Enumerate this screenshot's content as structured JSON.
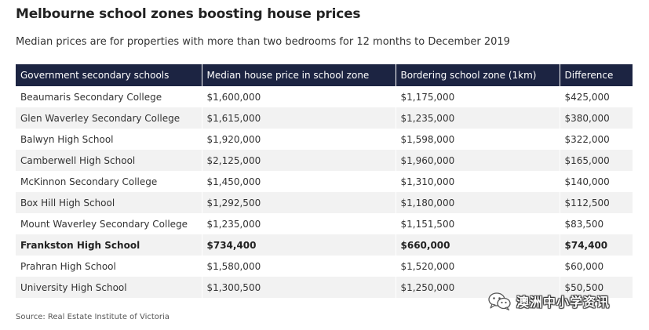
{
  "title": "Melbourne school zones boosting house prices",
  "subtitle": "Median prices are for properties with more than two bedrooms for 12 months to December 2019",
  "table": {
    "headers": [
      "Government secondary schools",
      "Median house price in school zone",
      "Bordering school zone (1km)",
      "Difference"
    ],
    "rows": [
      [
        "Beaumaris Secondary College",
        "$1,600,000",
        "$1,175,000",
        "$425,000"
      ],
      [
        "Glen Waverley Secondary College",
        "$1,615,000",
        "$1,235,000",
        "$380,000"
      ],
      [
        "Balwyn High School",
        "$1,920,000",
        "$1,598,000",
        "$322,000"
      ],
      [
        "Camberwell High School",
        "$2,125,000",
        "$1,960,000",
        "$165,000"
      ],
      [
        "McKinnon Secondary College",
        "$1,450,000",
        "$1,310,000",
        "$140,000"
      ],
      [
        "Box Hill High School",
        "$1,292,500",
        "$1,180,000",
        "$112,500"
      ],
      [
        "Mount Waverley Secondary College",
        "$1,235,000",
        "$1,151,500",
        "$83,500"
      ],
      [
        "Frankston High School",
        "$734,400",
        "$660,000",
        "$74,400"
      ],
      [
        "Prahran High School",
        "$1,580,000",
        "$1,520,000",
        "$60,000"
      ],
      [
        "University High School",
        "$1,300,500",
        "$1,250,000",
        "$50,500"
      ]
    ],
    "highlighted_row_index": 7,
    "header_bg_color": "#1c2442",
    "stripe_color": "#f2f2f2"
  },
  "source": "Source: Real Estate Institute of Victoria",
  "watermark": {
    "text": "澳洲中小学资讯",
    "icon": "wechat-icon"
  }
}
